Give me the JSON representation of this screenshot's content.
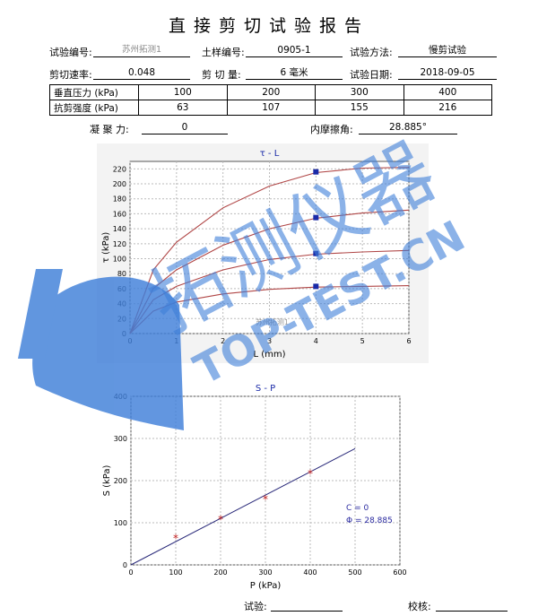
{
  "report": {
    "title": "直接剪切试验报告",
    "fields": {
      "test_no_label": "试验编号:",
      "test_no_value": "苏州拓测1",
      "sample_no_label": "土样编号:",
      "sample_no_value": "0905-1",
      "method_label": "试验方法:",
      "method_value": "慢剪试验",
      "rate_label": "剪切速率:",
      "rate_value": "0.048",
      "amount_label": "剪 切 量:",
      "amount_value": "6 毫米",
      "date_label": "试验日期:",
      "date_value": "2018-09-05"
    },
    "table": {
      "row1_label": "垂直压力 (kPa)",
      "row1_values": [
        "100",
        "200",
        "300",
        "400"
      ],
      "row2_label": "抗剪强度 (kPa)",
      "row2_values": [
        "63",
        "107",
        "155",
        "216"
      ]
    },
    "cohesion_label": "凝 聚 力:",
    "cohesion_value": "0",
    "friction_label": "内摩擦角:",
    "friction_value": "28.885°",
    "footer": {
      "test_label": "试验:",
      "check_label": "校核:"
    }
  },
  "watermark": {
    "text_cn": "拓测仪器",
    "text_en": "TOP-TEST.CN",
    "chart_tag": "苏州拓测1",
    "color": "#3f7fd9"
  },
  "chart_data": [
    {
      "type": "line",
      "title": "τ - L",
      "xlabel": "L (mm)",
      "ylabel": "τ (kPa)",
      "xlim": [
        0,
        6
      ],
      "ylim": [
        0,
        230
      ],
      "x_ticks": [
        "0",
        "1",
        "2",
        "3",
        "4",
        "5",
        "6"
      ],
      "y_ticks": [
        "0",
        "20",
        "40",
        "60",
        "80",
        "100",
        "120",
        "140",
        "160",
        "180",
        "200",
        "220"
      ],
      "grid": true,
      "series": [
        {
          "plateau": 63,
          "values_at": {
            "x": [
              0,
              0.5,
              1,
              2,
              3,
              4,
              5,
              6
            ],
            "y": [
              0,
              30,
              42,
              53,
              59,
              62,
              63,
              64
            ]
          }
        },
        {
          "plateau": 107,
          "values_at": {
            "x": [
              0,
              0.5,
              1,
              2,
              3,
              4,
              5,
              6
            ],
            "y": [
              0,
              45,
              63,
              85,
              99,
              106,
              109,
              111
            ]
          }
        },
        {
          "plateau": 155,
          "values_at": {
            "x": [
              0,
              0.5,
              1,
              2,
              3,
              4,
              5,
              6
            ],
            "y": [
              0,
              60,
              85,
              118,
              140,
              154,
              161,
              165
            ]
          }
        },
        {
          "plateau": 216,
          "values_at": {
            "x": [
              0,
              0.5,
              1,
              2,
              3,
              4,
              5,
              6
            ],
            "y": [
              0,
              85,
              122,
              168,
              197,
              215,
              221,
              222
            ]
          }
        }
      ],
      "markers": {
        "x": [
          4,
          4,
          4,
          4
        ],
        "y": [
          63,
          107,
          155,
          216
        ]
      },
      "line_color": "#b04646",
      "marker_color": "#1a2aa8"
    },
    {
      "type": "scatter",
      "title": "S - P",
      "xlabel": "P (kPa)",
      "ylabel": "S (kPa)",
      "xlim": [
        0,
        600
      ],
      "ylim": [
        0,
        400
      ],
      "x_ticks": [
        "0",
        "100",
        "200",
        "300",
        "400",
        "500",
        "600"
      ],
      "y_ticks": [
        "0",
        "100",
        "200",
        "300",
        "400"
      ],
      "grid": true,
      "points": {
        "x": [
          100,
          200,
          300,
          400
        ],
        "y": [
          63,
          107,
          155,
          216
        ]
      },
      "fit_line": {
        "x": [
          0,
          500
        ],
        "y": [
          0,
          276
        ]
      },
      "annotation_c": "C = 0",
      "annotation_phi": "Φ = 28.885",
      "point_color": "#c02020",
      "line_color": "#2a2a7a",
      "annotation_color": "#2a2aa0"
    }
  ]
}
